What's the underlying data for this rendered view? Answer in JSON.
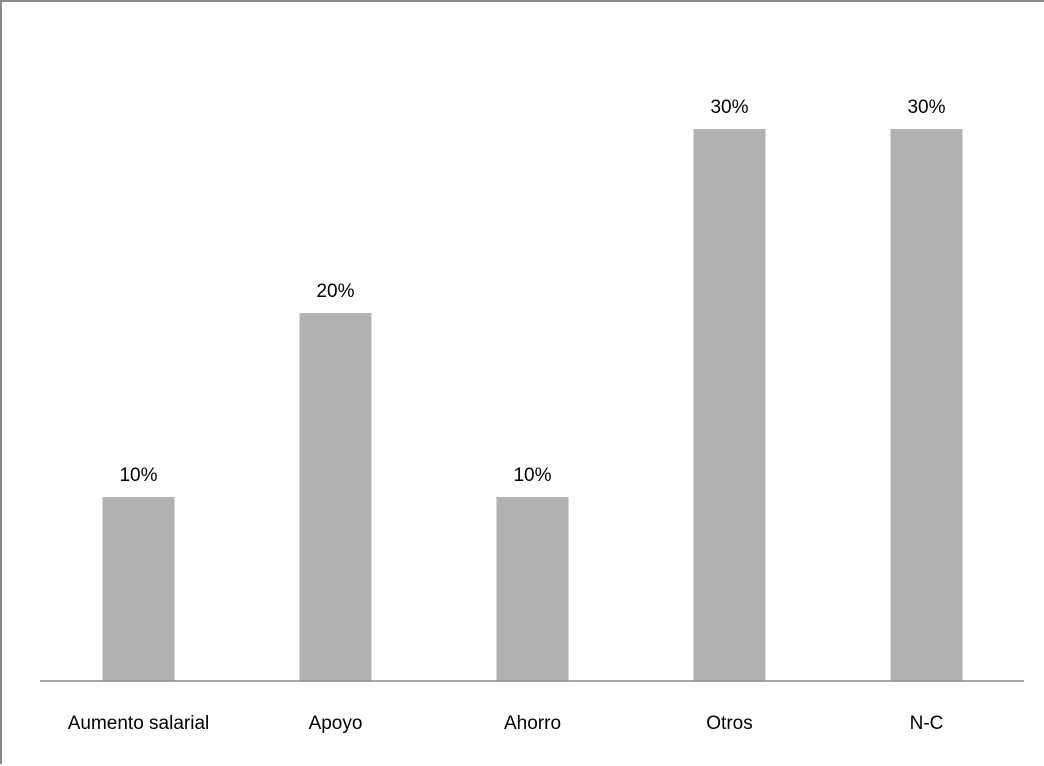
{
  "chart_data": {
    "type": "bar",
    "title": "",
    "xlabel": "",
    "ylabel": "",
    "categories": [
      "Aumento salarial",
      "Apoyo",
      "Ahorro",
      "Otros",
      "N-C"
    ],
    "values": [
      10,
      20,
      10,
      30,
      30
    ],
    "data_labels": [
      "10%",
      "20%",
      "10%",
      "30%",
      "30%"
    ],
    "unit": "%",
    "ylim": [
      0,
      30
    ],
    "grid": false,
    "legend": "none",
    "bar_color": "#b2b2b2",
    "axis_color": "#8c8c8c"
  }
}
